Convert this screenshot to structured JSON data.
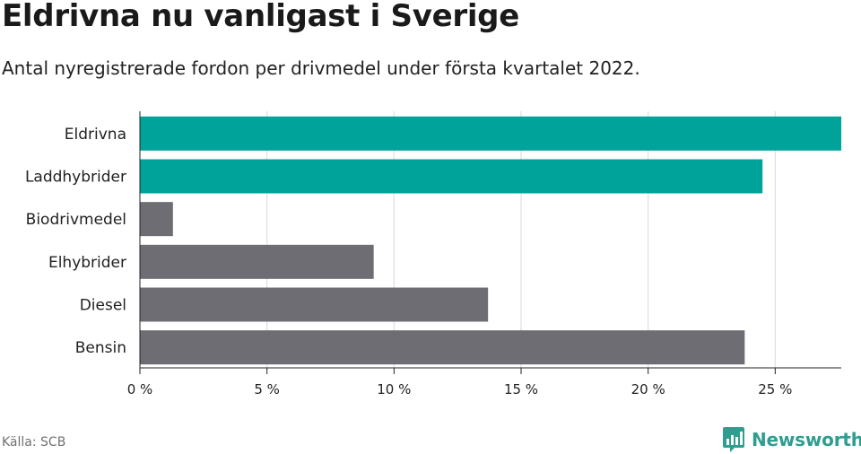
{
  "header": {
    "title": "Eldrivna nu vanligast i Sverige",
    "subtitle": "Antal nyregistrerade fordon per drivmedel under första kvartalet 2022."
  },
  "footer": {
    "source": "Källa: SCB",
    "brand": "Newsworthy",
    "brand_icon": "bar-chart-icon"
  },
  "colors": {
    "highlight": "#00a39a",
    "default": "#6f6d74",
    "grid": "#d9d9d9",
    "brand": "#2e9e8f"
  },
  "chart_data": {
    "type": "bar",
    "orientation": "horizontal",
    "categories": [
      "Eldrivna",
      "Laddhybrider",
      "Biodrivmedel",
      "Elhybrider",
      "Diesel",
      "Bensin"
    ],
    "values": [
      27.6,
      24.5,
      1.3,
      9.2,
      13.7,
      23.8
    ],
    "highlighted": [
      true,
      true,
      false,
      false,
      false,
      false
    ],
    "xlim": [
      0,
      27.6
    ],
    "xticks": [
      0,
      5,
      10,
      15,
      20,
      25
    ],
    "xtick_labels": [
      "0 %",
      "5 %",
      "10 %",
      "15 %",
      "20 %",
      "25 %"
    ],
    "grid": true
  }
}
